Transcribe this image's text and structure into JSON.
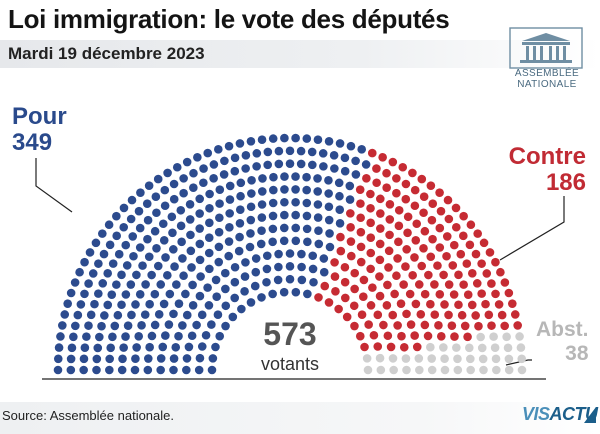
{
  "header": {
    "title": "Loi immigration: le vote des députés",
    "date": "Mardi 19 décembre 2023"
  },
  "logo": {
    "line1": "ASSEMBLÉE",
    "line2": "NATIONALE",
    "icon": "assemblee-nationale-building-icon"
  },
  "chart_data": {
    "type": "parliament",
    "total_label": "573",
    "total_caption": "votants",
    "series": [
      {
        "name": "Pour",
        "value": 349,
        "color": "#2c4b8e"
      },
      {
        "name": "Contre",
        "value": 186,
        "color": "#c62b33"
      },
      {
        "name": "Abst.",
        "value": 38,
        "color": "#cfcfcf"
      }
    ]
  },
  "labels": {
    "pour_name": "Pour",
    "pour_value": "349",
    "contre_name": "Contre",
    "contre_value": "186",
    "abst_name": "Abst.",
    "abst_value": "38"
  },
  "footer": {
    "source": "Source: Assemblée nationale.",
    "brand_part1": "VIS",
    "brand_part2": "ACTU"
  }
}
